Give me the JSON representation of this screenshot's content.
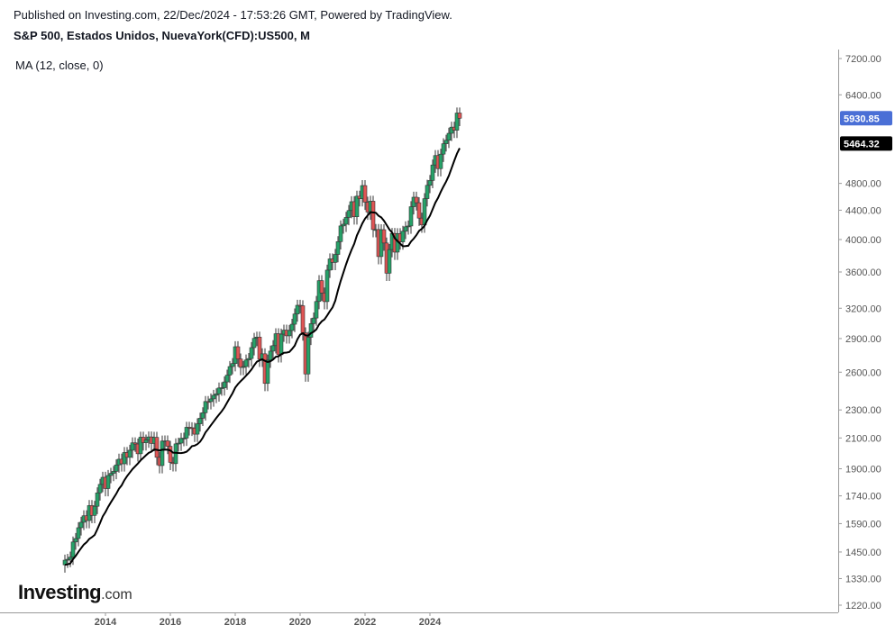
{
  "header": {
    "published": "Published on Investing.com, 22/Dec/2024 - 17:53:26 GMT, Powered by TradingView.",
    "symbol": "S&P 500, Estados Unidos, NuevaYork(CFD):US500, M",
    "indicator": "MA (12, close, 0)"
  },
  "logo": {
    "main": "Investing",
    "suffix": ".com"
  },
  "colors": {
    "up": "#26a269",
    "down": "#e05555",
    "ma": "#000000",
    "last_price_badge": "#4a6fd6",
    "ma_badge": "#000000",
    "axis": "#555555"
  },
  "chart_data": {
    "type": "candlestick",
    "scale": "log",
    "ylim": [
      1180,
      7500
    ],
    "yticks": [
      "7200.00",
      "6400.00",
      "4800.00",
      "4400.00",
      "4000.00",
      "3600.00",
      "3200.00",
      "2900.00",
      "2600.00",
      "2300.00",
      "2100.00",
      "1900.00",
      "1740.00",
      "1590.00",
      "1450.00",
      "1330.00",
      "1220.00"
    ],
    "xticks": [
      "2014",
      "2016",
      "2018",
      "2020",
      "2022",
      "2024"
    ],
    "last_price": "5930.85",
    "ma_value": "5464.32",
    "closes_start": "2012-10",
    "closes": [
      1412,
      1416,
      1426,
      1498,
      1515,
      1569,
      1597,
      1631,
      1606,
      1686,
      1633,
      1682,
      1757,
      1806,
      1848,
      1782,
      1859,
      1872,
      1884,
      1924,
      1960,
      1931,
      2003,
      1972,
      2018,
      2067,
      2059,
      1995,
      2105,
      2068,
      2086,
      2107,
      2063,
      2104,
      1972,
      1920,
      2079,
      2080,
      2044,
      1940,
      1932,
      2060,
      2065,
      2097,
      2099,
      2174,
      2171,
      2168,
      2126,
      2199,
      2239,
      2279,
      2364,
      2363,
      2384,
      2412,
      2423,
      2470,
      2472,
      2519,
      2575,
      2648,
      2674,
      2824,
      2714,
      2641,
      2648,
      2705,
      2718,
      2816,
      2902,
      2914,
      2712,
      2760,
      2507,
      2704,
      2784,
      2834,
      2946,
      2752,
      2942,
      2980,
      2926,
      2977,
      3038,
      3141,
      3231,
      3226,
      2954,
      2585,
      2912,
      3044,
      3100,
      3271,
      3500,
      3363,
      3270,
      3622,
      3756,
      3714,
      3811,
      3973,
      4181,
      4204,
      4298,
      4395,
      4523,
      4307,
      4605,
      4567,
      4766,
      4516,
      4374,
      4530,
      4132,
      4132,
      3785,
      4130,
      3955,
      3586,
      3872,
      4080,
      3840,
      4077,
      3970,
      4109,
      4169,
      4180,
      4450,
      4589,
      4508,
      4288,
      4194,
      4568,
      4770,
      4846,
      5096,
      5254,
      5036,
      5278,
      5460,
      5522,
      5648,
      5762,
      5705,
      6032,
      5931
    ]
  }
}
